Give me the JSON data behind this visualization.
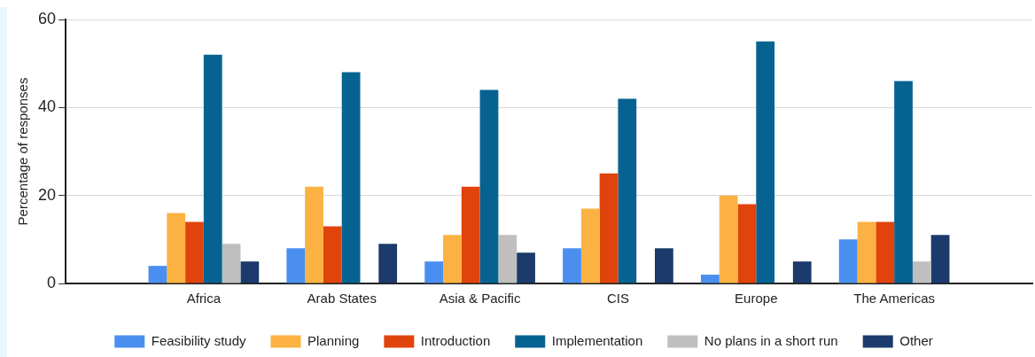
{
  "chart_data": {
    "type": "bar",
    "ylabel": "Percentage of responses",
    "categories": [
      null,
      "Africa",
      "Arab States",
      "Asia & Pacific",
      "CIS",
      "Europe",
      "The Americas",
      null
    ],
    "series": [
      {
        "name": "Feasibility study",
        "color": "#4a8ff0",
        "values": [
          null,
          4,
          8,
          5,
          8,
          2,
          10,
          null
        ]
      },
      {
        "name": "Planning",
        "color": "#fbb242",
        "values": [
          null,
          16,
          22,
          11,
          17,
          20,
          14,
          null
        ]
      },
      {
        "name": "Introduction",
        "color": "#e0430c",
        "values": [
          null,
          14,
          13,
          22,
          25,
          18,
          14,
          null
        ]
      },
      {
        "name": "Implementation",
        "color": "#066391",
        "values": [
          null,
          52,
          48,
          44,
          42,
          55,
          46,
          null
        ]
      },
      {
        "name": "No plans in a short run",
        "color": "#bfbfbf",
        "values": [
          null,
          9,
          null,
          11,
          null,
          null,
          5,
          null
        ]
      },
      {
        "name": "Other",
        "color": "#1c3a6b",
        "values": [
          null,
          5,
          9,
          7,
          8,
          5,
          11,
          null
        ]
      }
    ],
    "ylim": [
      0,
      60
    ],
    "yticks": [
      0,
      20,
      40,
      60
    ],
    "grid": "y",
    "legend": "bottom"
  }
}
